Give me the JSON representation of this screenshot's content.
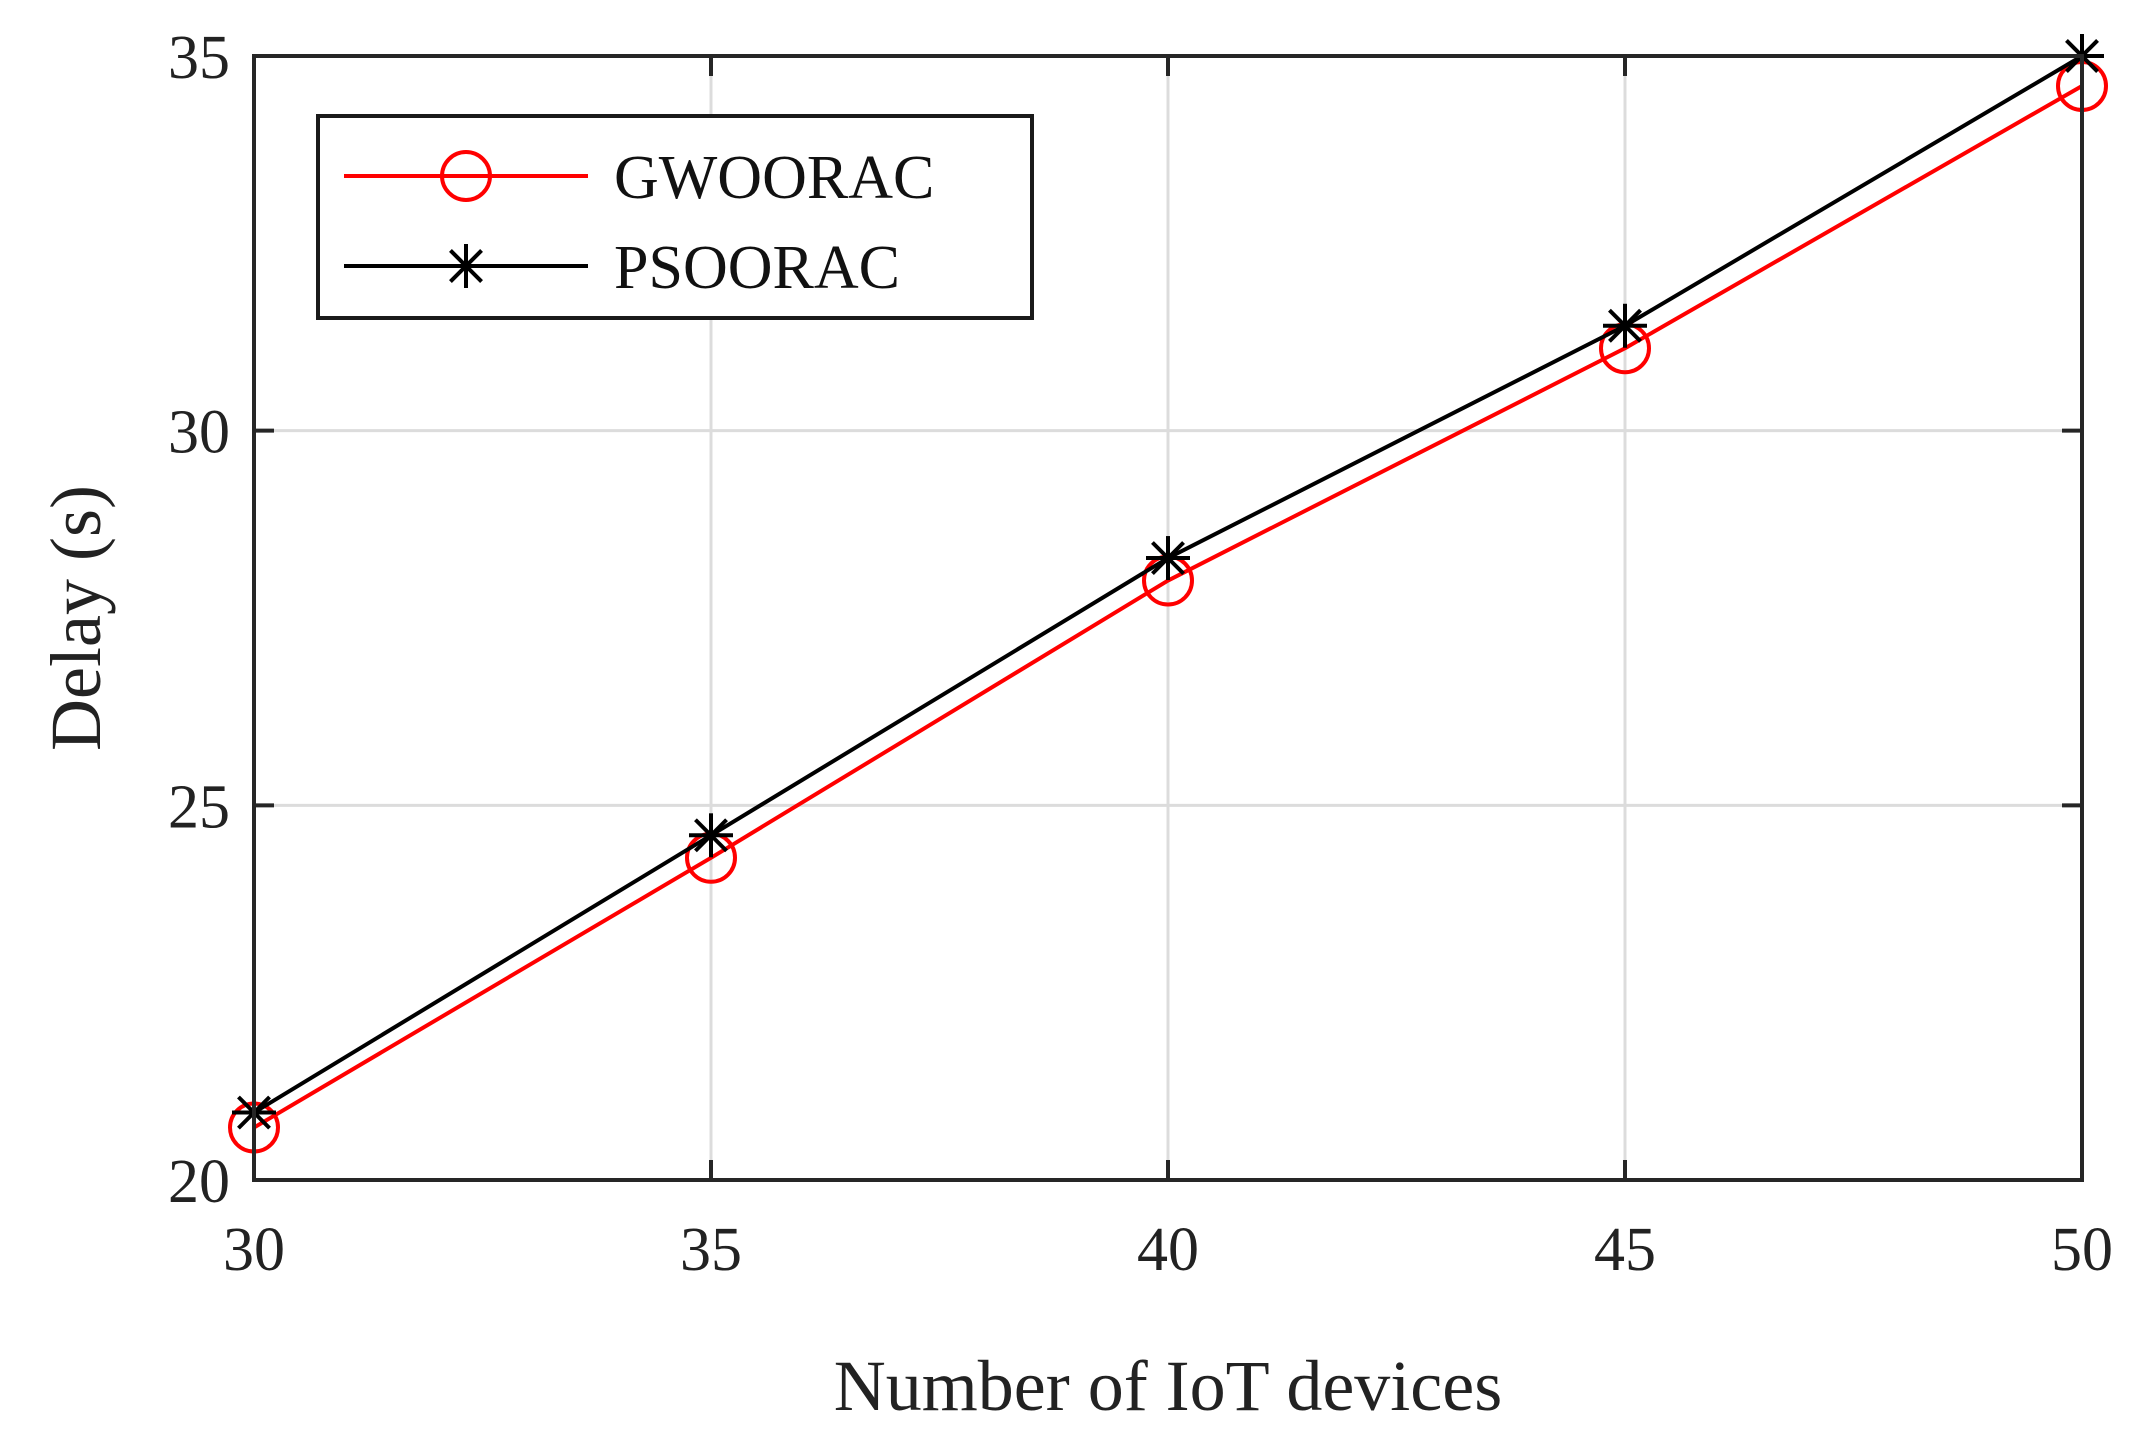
{
  "chart_data": {
    "type": "line",
    "xlabel": "Number of IoT devices",
    "ylabel": "Delay (s)",
    "x": [
      30,
      35,
      40,
      45,
      50
    ],
    "xlim": [
      30,
      50
    ],
    "ylim": [
      20,
      35
    ],
    "xticks": [
      "30",
      "35",
      "40",
      "45",
      "50"
    ],
    "yticks": [
      "20",
      "25",
      "30",
      "35"
    ],
    "grid": true,
    "legend_position": "top-left",
    "series": [
      {
        "name": "GWOORAC",
        "values": [
          20.7,
          24.3,
          28.0,
          31.1,
          34.6
        ],
        "color": "#ff0000",
        "marker": "circle"
      },
      {
        "name": "PSOORAC",
        "values": [
          20.9,
          24.6,
          28.3,
          31.4,
          35.0
        ],
        "color": "#000000",
        "marker": "asterisk"
      }
    ]
  }
}
